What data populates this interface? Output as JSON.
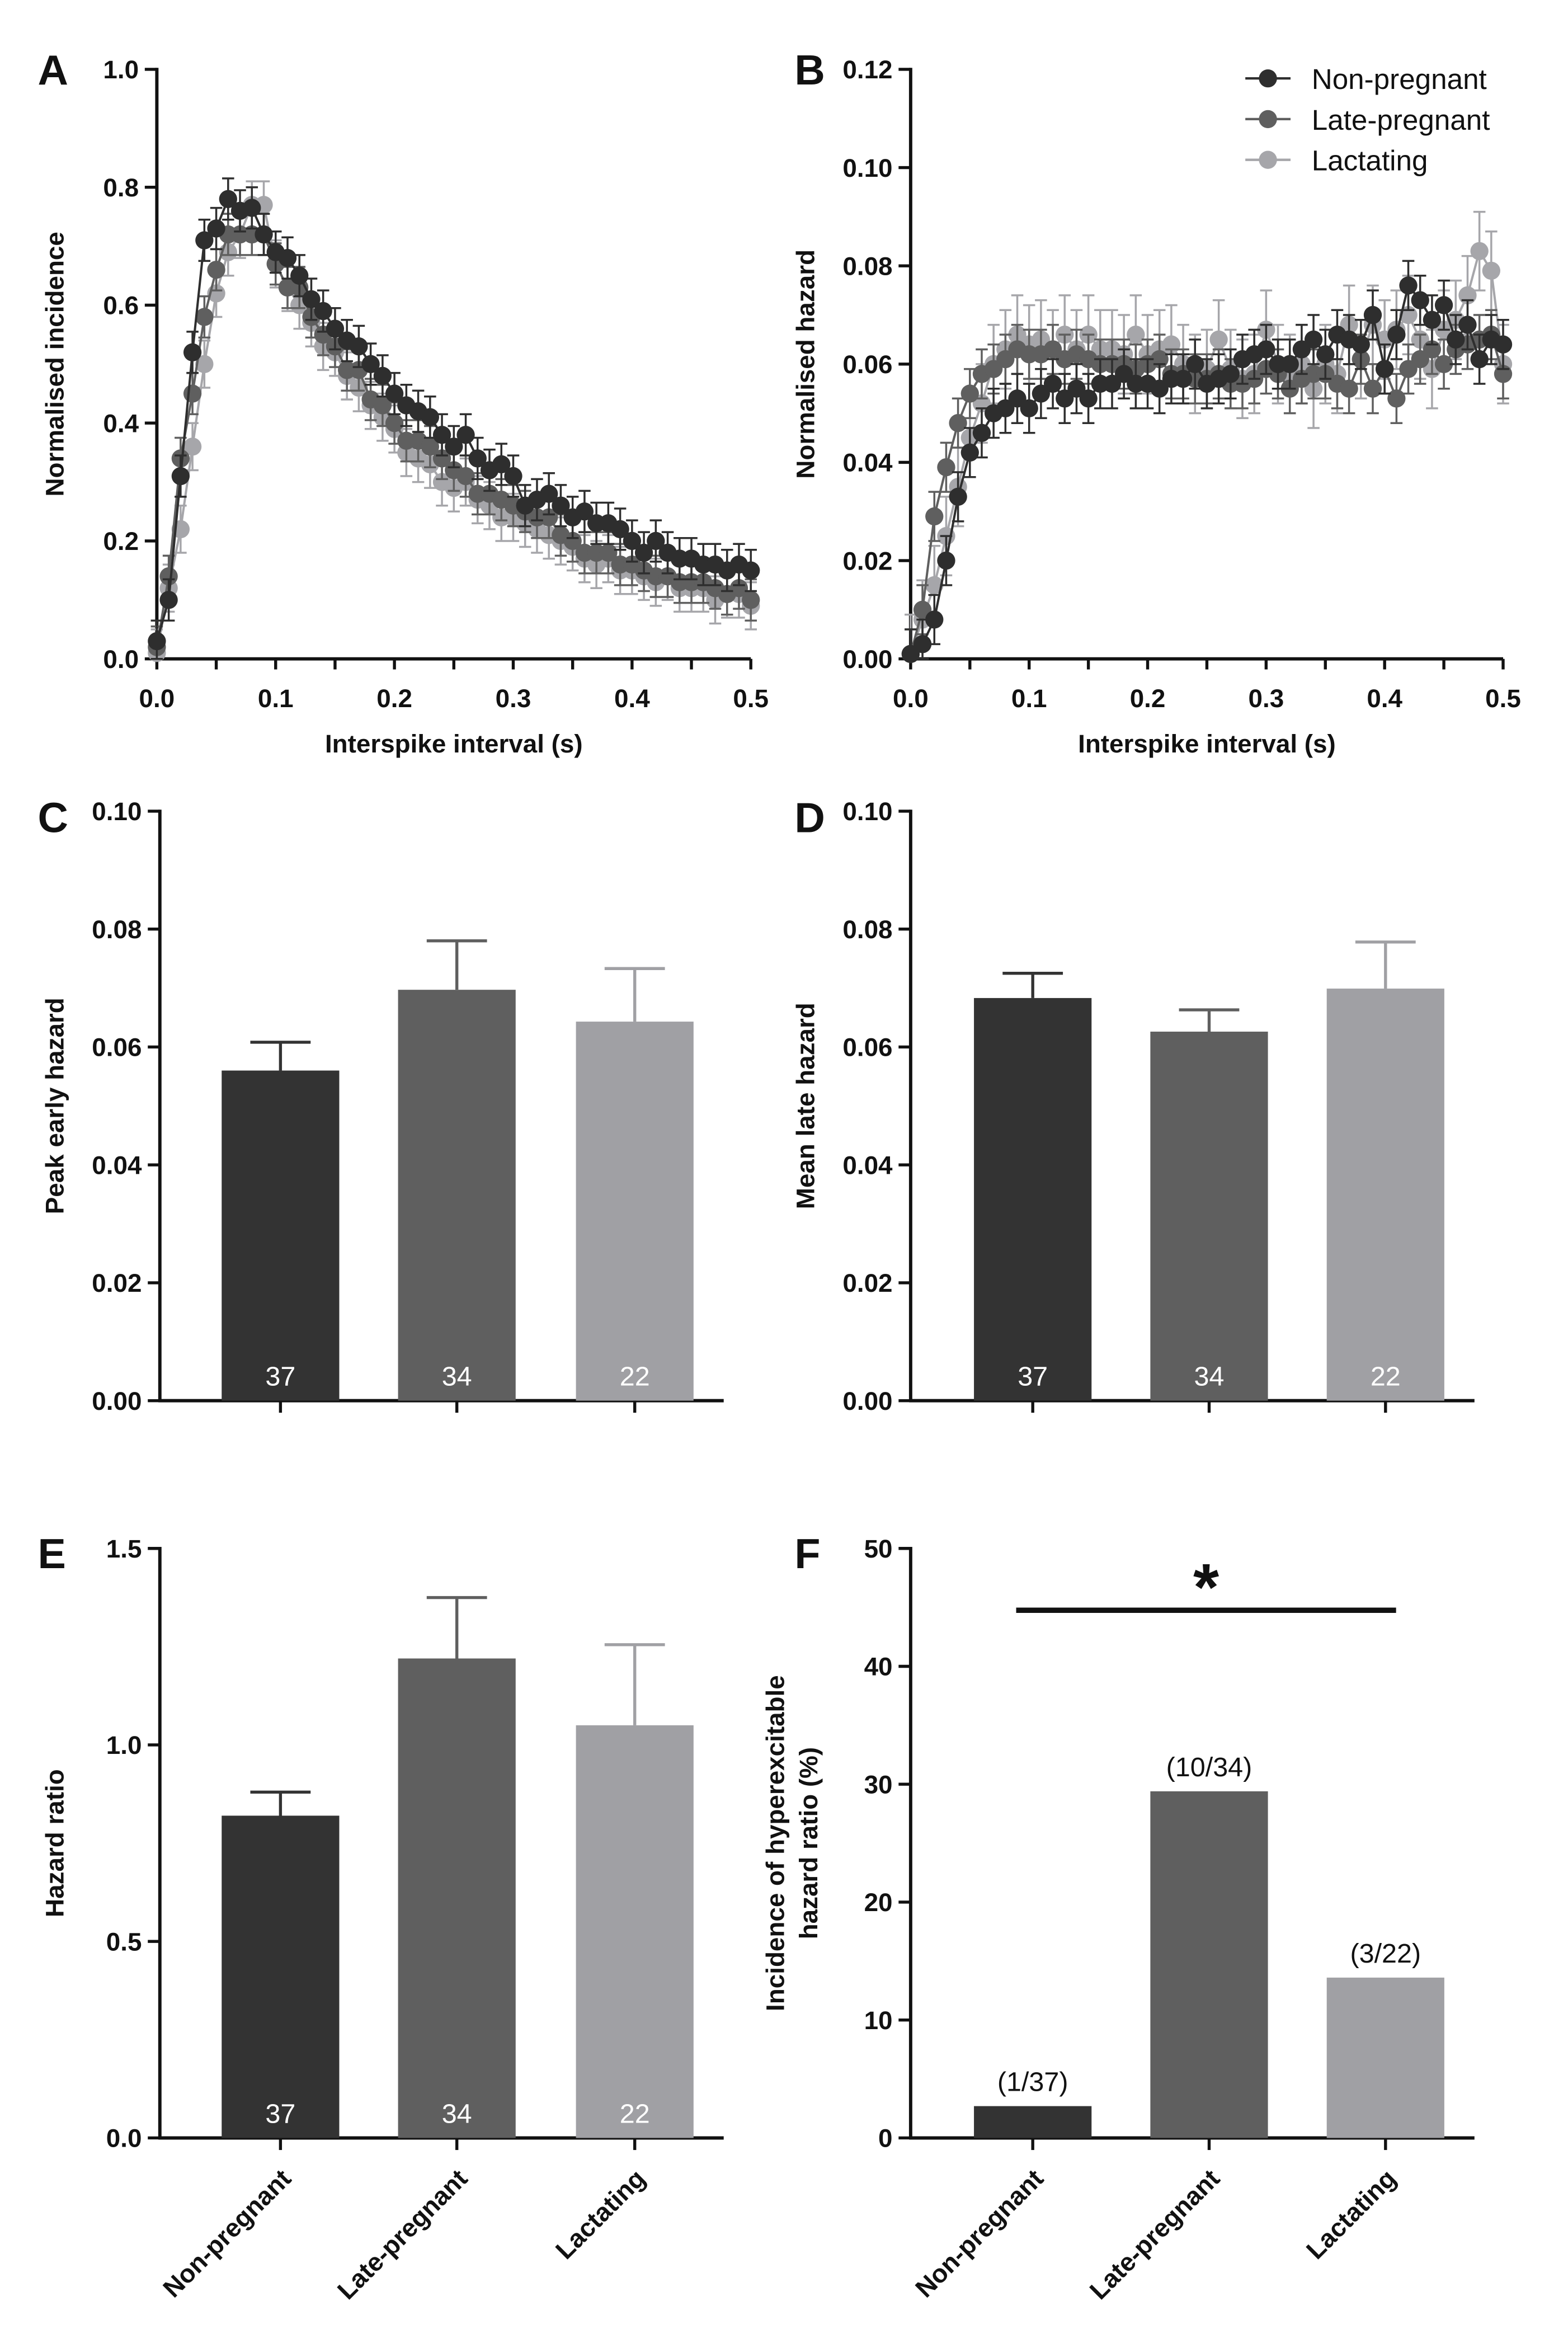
{
  "chart_data": [
    {
      "panel": "A",
      "type": "line",
      "xlabel": "Interspike interval (s)",
      "ylabel": "Normalised incidence",
      "xlim": [
        0,
        0.5
      ],
      "ylim": [
        0,
        1.0
      ],
      "xticks": [
        0,
        0.1,
        0.2,
        0.3,
        0.4,
        0.5
      ],
      "xtick_labels": [
        "0.0",
        "0.1",
        "0.2",
        "0.3",
        "0.4",
        "0.5"
      ],
      "yticks": [
        0,
        0.2,
        0.4,
        0.6,
        0.8,
        1.0
      ],
      "ytick_labels": [
        "0.0",
        "0.2",
        "0.4",
        "0.6",
        "0.8",
        "1.0"
      ],
      "x_start": 0,
      "x_step": 0.01,
      "series": [
        {
          "name": "Lactating",
          "color": "#a6a6aa",
          "sem": 0.04,
          "values": [
            0.01,
            0.12,
            0.22,
            0.36,
            0.5,
            0.62,
            0.69,
            0.72,
            0.77,
            0.77,
            0.67,
            0.63,
            0.6,
            0.57,
            0.53,
            0.52,
            0.48,
            0.46,
            0.43,
            0.41,
            0.39,
            0.35,
            0.34,
            0.33,
            0.3,
            0.29,
            0.3,
            0.27,
            0.26,
            0.24,
            0.24,
            0.23,
            0.22,
            0.21,
            0.2,
            0.19,
            0.17,
            0.16,
            0.17,
            0.15,
            0.15,
            0.14,
            0.13,
            0.14,
            0.12,
            0.12,
            0.12,
            0.1,
            0.11,
            0.11,
            0.09
          ]
        },
        {
          "name": "Late-pregnant",
          "color": "#5f5f5f",
          "sem": 0.035,
          "values": [
            0.02,
            0.14,
            0.34,
            0.45,
            0.58,
            0.66,
            0.72,
            0.72,
            0.72,
            0.72,
            0.67,
            0.63,
            0.63,
            0.58,
            0.55,
            0.53,
            0.49,
            0.49,
            0.44,
            0.43,
            0.4,
            0.37,
            0.37,
            0.36,
            0.34,
            0.32,
            0.31,
            0.28,
            0.28,
            0.27,
            0.26,
            0.25,
            0.24,
            0.24,
            0.21,
            0.2,
            0.18,
            0.18,
            0.18,
            0.16,
            0.16,
            0.15,
            0.14,
            0.14,
            0.13,
            0.13,
            0.13,
            0.12,
            0.11,
            0.12,
            0.1
          ]
        },
        {
          "name": "Non-pregnant",
          "color": "#2e2e2e",
          "sem": 0.035,
          "values": [
            0.03,
            0.1,
            0.31,
            0.52,
            0.71,
            0.73,
            0.78,
            0.76,
            0.765,
            0.72,
            0.69,
            0.68,
            0.65,
            0.61,
            0.59,
            0.56,
            0.54,
            0.53,
            0.5,
            0.48,
            0.45,
            0.43,
            0.42,
            0.41,
            0.38,
            0.36,
            0.38,
            0.34,
            0.32,
            0.33,
            0.31,
            0.26,
            0.27,
            0.28,
            0.26,
            0.24,
            0.25,
            0.23,
            0.23,
            0.22,
            0.2,
            0.18,
            0.2,
            0.18,
            0.17,
            0.17,
            0.16,
            0.16,
            0.15,
            0.16,
            0.15
          ]
        }
      ]
    },
    {
      "panel": "B",
      "type": "line",
      "xlabel": "Interspike interval (s)",
      "ylabel": "Normalised hazard",
      "xlim": [
        0,
        0.5
      ],
      "ylim": [
        0,
        0.12
      ],
      "xticks": [
        0,
        0.1,
        0.2,
        0.3,
        0.4,
        0.5
      ],
      "xtick_labels": [
        "0.0",
        "0.1",
        "0.2",
        "0.3",
        "0.4",
        "0.5"
      ],
      "yticks": [
        0,
        0.02,
        0.04,
        0.06,
        0.08,
        0.1,
        0.12
      ],
      "ytick_labels": [
        "0.00",
        "0.02",
        "0.04",
        "0.06",
        "0.08",
        "0.10",
        "0.12"
      ],
      "x_start": 0,
      "x_step": 0.01,
      "legend": {
        "placement": "top-right",
        "entries": [
          "Non-pregnant",
          "Late-pregnant",
          "Lactating"
        ]
      },
      "series": [
        {
          "name": "Lactating",
          "color": "#a6a6aa",
          "sem": 0.008,
          "values": [
            0.001,
            0.008,
            0.015,
            0.025,
            0.035,
            0.045,
            0.052,
            0.06,
            0.063,
            0.066,
            0.064,
            0.065,
            0.063,
            0.066,
            0.063,
            0.066,
            0.063,
            0.063,
            0.062,
            0.066,
            0.062,
            0.063,
            0.064,
            0.06,
            0.058,
            0.059,
            0.065,
            0.059,
            0.057,
            0.058,
            0.067,
            0.06,
            0.058,
            0.06,
            0.055,
            0.06,
            0.058,
            0.068,
            0.061,
            0.068,
            0.065,
            0.067,
            0.07,
            0.065,
            0.059,
            0.067,
            0.069,
            0.074,
            0.083,
            0.079,
            0.06
          ]
        },
        {
          "name": "Late-pregnant",
          "color": "#5f5f5f",
          "sem": 0.005,
          "values": [
            0.001,
            0.01,
            0.029,
            0.039,
            0.048,
            0.054,
            0.058,
            0.059,
            0.061,
            0.063,
            0.062,
            0.062,
            0.063,
            0.061,
            0.062,
            0.061,
            0.06,
            0.06,
            0.06,
            0.059,
            0.06,
            0.061,
            0.058,
            0.058,
            0.057,
            0.057,
            0.058,
            0.056,
            0.056,
            0.057,
            0.059,
            0.058,
            0.055,
            0.057,
            0.058,
            0.058,
            0.056,
            0.055,
            0.061,
            0.055,
            0.059,
            0.053,
            0.059,
            0.061,
            0.063,
            0.06,
            0.063,
            0.064,
            0.065,
            0.066,
            0.058
          ]
        },
        {
          "name": "Non-pregnant",
          "color": "#2e2e2e",
          "sem": 0.005,
          "values": [
            0.001,
            0.003,
            0.008,
            0.02,
            0.033,
            0.042,
            0.046,
            0.05,
            0.051,
            0.053,
            0.051,
            0.054,
            0.056,
            0.053,
            0.055,
            0.053,
            0.056,
            0.056,
            0.058,
            0.056,
            0.056,
            0.055,
            0.057,
            0.057,
            0.06,
            0.056,
            0.057,
            0.058,
            0.061,
            0.062,
            0.063,
            0.06,
            0.06,
            0.063,
            0.065,
            0.062,
            0.066,
            0.065,
            0.064,
            0.07,
            0.059,
            0.066,
            0.076,
            0.073,
            0.069,
            0.072,
            0.065,
            0.068,
            0.061,
            0.065,
            0.064
          ]
        }
      ]
    },
    {
      "panel": "C",
      "type": "bar",
      "ylabel": "Peak early hazard",
      "categories": [
        "Non-pregnant",
        "Late-pregnant",
        "Lactating"
      ],
      "values": [
        0.056,
        0.0697,
        0.0643
      ],
      "errors": [
        0.0048,
        0.0083,
        0.009
      ],
      "n_labels": [
        "37",
        "34",
        "22"
      ],
      "colors": [
        "#333333",
        "#5f5f5f",
        "#a0a0a4"
      ],
      "ylim": [
        0,
        0.1
      ],
      "yticks": [
        0,
        0.02,
        0.04,
        0.06,
        0.08,
        0.1
      ],
      "ytick_labels": [
        "0.00",
        "0.02",
        "0.04",
        "0.06",
        "0.08",
        "0.10"
      ]
    },
    {
      "panel": "D",
      "type": "bar",
      "ylabel": "Mean late hazard",
      "categories": [
        "Non-pregnant",
        "Late-pregnant",
        "Lactating"
      ],
      "values": [
        0.0683,
        0.0626,
        0.0699
      ],
      "errors": [
        0.0042,
        0.0037,
        0.0079
      ],
      "n_labels": [
        "37",
        "34",
        "22"
      ],
      "colors": [
        "#333333",
        "#5f5f5f",
        "#a0a0a4"
      ],
      "ylim": [
        0,
        0.1
      ],
      "yticks": [
        0,
        0.02,
        0.04,
        0.06,
        0.08,
        0.1
      ],
      "ytick_labels": [
        "0.00",
        "0.02",
        "0.04",
        "0.06",
        "0.08",
        "0.10"
      ]
    },
    {
      "panel": "E",
      "type": "bar",
      "ylabel": "Hazard ratio",
      "categories": [
        "Non-pregnant",
        "Late-pregnant",
        "Lactating"
      ],
      "values": [
        0.82,
        1.22,
        1.05
      ],
      "errors": [
        0.06,
        0.155,
        0.205
      ],
      "n_labels": [
        "37",
        "34",
        "22"
      ],
      "colors": [
        "#333333",
        "#5f5f5f",
        "#a0a0a4"
      ],
      "ylim": [
        0,
        1.5
      ],
      "yticks": [
        0,
        0.5,
        1.0,
        1.5
      ],
      "ytick_labels": [
        "0.0",
        "0.5",
        "1.0",
        "1.5"
      ],
      "show_category_labels": true
    },
    {
      "panel": "F",
      "type": "bar",
      "ylabel": [
        "Incidence of hyperexcitable",
        "hazard ratio (%)"
      ],
      "categories": [
        "Non-pregnant",
        "Late-pregnant",
        "Lactating"
      ],
      "values": [
        2.7,
        29.4,
        13.6
      ],
      "value_labels": [
        "(1/37)",
        "(10/34)",
        "(3/22)"
      ],
      "colors": [
        "#333333",
        "#5f5f5f",
        "#a0a0a4"
      ],
      "ylim": [
        0,
        50
      ],
      "yticks": [
        0,
        10,
        20,
        30,
        40,
        50
      ],
      "ytick_labels": [
        "0",
        "10",
        "20",
        "30",
        "40",
        "50"
      ],
      "show_category_labels": true,
      "annotation": {
        "text": "*",
        "from_category": 0,
        "to_category": 2
      }
    }
  ]
}
